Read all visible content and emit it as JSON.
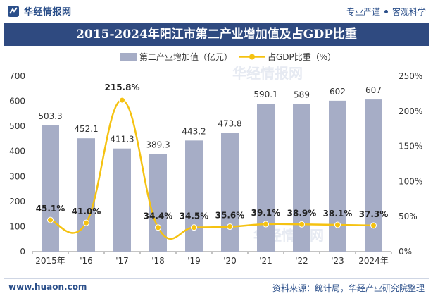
{
  "header": {
    "brand": "华经情报网",
    "slogan_left": "专业严谨",
    "slogan_right": "客观科学"
  },
  "title": "2015-2024年阳江市第二产业增加值及占GDP比重",
  "footer": {
    "website": "www.huaon.com",
    "source": "资料来源：统计局，华经产业研究院整理"
  },
  "colors": {
    "bar": "#a6adc6",
    "line": "#f5c211",
    "title_bg": "#2f4a80",
    "brand": "#2b4f8a"
  },
  "chart_data": {
    "type": "bar+line",
    "categories": [
      "2015年",
      "'16",
      "'17",
      "'18",
      "'19",
      "'20",
      "'21",
      "'22",
      "'23",
      "2024年"
    ],
    "series": [
      {
        "name": "第二产业增加值（亿元）",
        "type": "bar",
        "axis": "left",
        "values": [
          503.3,
          452.1,
          411.3,
          389.3,
          443.2,
          473.8,
          590.1,
          589,
          602,
          607
        ],
        "labels": [
          "503.3",
          "452.1",
          "411.3",
          "389.3",
          "443.2",
          "473.8",
          "590.1",
          "589",
          "602",
          "607"
        ]
      },
      {
        "name": "占GDP比重（%）",
        "type": "line",
        "axis": "right",
        "values": [
          45.1,
          41.0,
          215.8,
          34.4,
          34.5,
          35.6,
          39.1,
          38.9,
          38.1,
          37.3
        ],
        "labels": [
          "45.1%",
          "41.0%",
          "215.8%",
          "34.4%",
          "34.5%",
          "35.6%",
          "39.1%",
          "38.9%",
          "38.1%",
          "37.3%"
        ]
      }
    ],
    "left_axis": {
      "min": 0,
      "max": 700,
      "ticks": [
        "0",
        "100",
        "200",
        "300",
        "400",
        "500",
        "600",
        "700"
      ]
    },
    "right_axis": {
      "min": 0,
      "max": 250,
      "ticks": [
        "0%",
        "50%",
        "100%",
        "150%",
        "200%",
        "250%"
      ]
    },
    "legend_position": "top-center",
    "grid": false
  }
}
